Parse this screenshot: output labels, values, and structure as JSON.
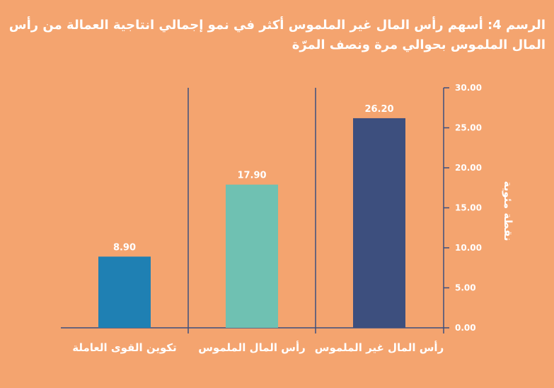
{
  "chart_data": {
    "type": "bar",
    "title": "الرسم 4: أسهم رأس المال غير الملموس أكثر في نمو إجمالي انتاجية العمالة من رأس المال الملموس بحوالي مرة ونصف المرّة",
    "ylabel": "نقطة مئوية",
    "xlabel": "",
    "categories": [
      "رأس المال غير الملموس",
      "رأس المال الملموس",
      "تكوين القوى العاملة"
    ],
    "values": [
      26.2,
      17.9,
      8.9
    ],
    "value_labels": [
      "26.20",
      "17.90",
      "8.90"
    ],
    "bar_colors": [
      "#3d4f7e",
      "#6fc1b2",
      "#1f80b3"
    ],
    "ylim": [
      0,
      30
    ],
    "yticks": [
      "0.00",
      "5.00",
      "10.00",
      "15.00",
      "20.00",
      "25.00",
      "30.00"
    ],
    "grid": false,
    "axis_side": "right",
    "category_order": "right-to-left"
  },
  "colors": {
    "background": "#f4a46f",
    "axis": "#3d4f7e",
    "text": "#ffffff"
  }
}
